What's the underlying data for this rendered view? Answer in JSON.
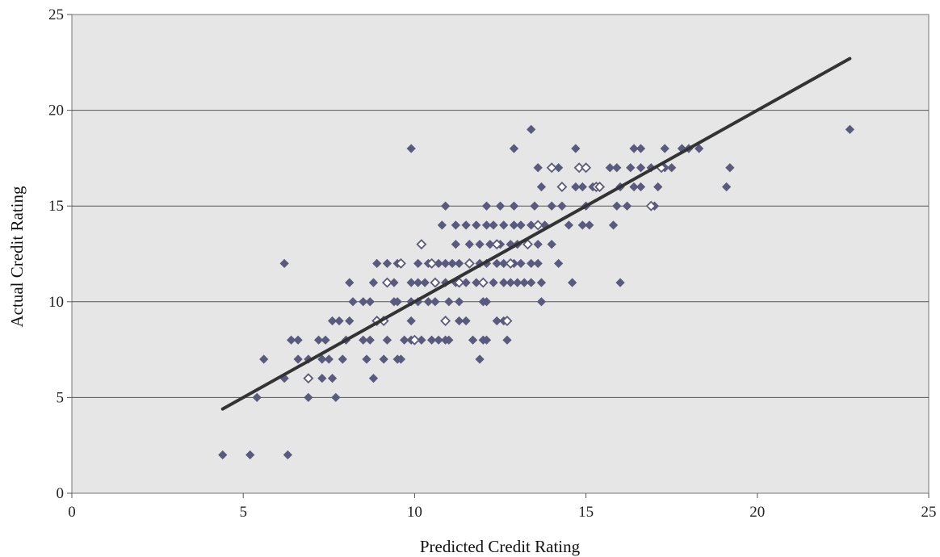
{
  "chart_data": {
    "type": "scatter",
    "title": "",
    "xlabel": "Predicted Credit Rating",
    "ylabel": "Actual Credit Rating",
    "xlim": [
      0,
      25
    ],
    "ylim": [
      0,
      25
    ],
    "x_ticks": [
      "0",
      "5",
      "10",
      "15",
      "20",
      "25"
    ],
    "y_ticks": [
      "0",
      "5",
      "10",
      "15",
      "20",
      "25"
    ],
    "grid": "horizontal",
    "plot_background": "#e6e6e6",
    "marker_color": "#5a5a7e",
    "line_color": "#333333",
    "trendline": {
      "x": [
        4.4,
        22.7
      ],
      "y": [
        4.4,
        22.7
      ]
    },
    "series": [
      {
        "marker": "filled-diamond",
        "points": [
          [
            4.4,
            2
          ],
          [
            5.2,
            2
          ],
          [
            6.3,
            2
          ],
          [
            5.4,
            5
          ],
          [
            6.2,
            6
          ],
          [
            6.9,
            5
          ],
          [
            7.7,
            5
          ],
          [
            7.3,
            6
          ],
          [
            7.6,
            6
          ],
          [
            8.8,
            6
          ],
          [
            5.6,
            7
          ],
          [
            6.6,
            7
          ],
          [
            6.9,
            7
          ],
          [
            7.3,
            7
          ],
          [
            7.5,
            7
          ],
          [
            7.9,
            7
          ],
          [
            8.6,
            7
          ],
          [
            9.1,
            7
          ],
          [
            9.5,
            7
          ],
          [
            9.6,
            7
          ],
          [
            11.9,
            7
          ],
          [
            6.4,
            8
          ],
          [
            6.6,
            8
          ],
          [
            7.2,
            8
          ],
          [
            7.4,
            8
          ],
          [
            8.0,
            8
          ],
          [
            8.5,
            8
          ],
          [
            8.7,
            8
          ],
          [
            9.2,
            8
          ],
          [
            9.7,
            8
          ],
          [
            9.9,
            8
          ],
          [
            10.2,
            8
          ],
          [
            10.5,
            8
          ],
          [
            10.7,
            8
          ],
          [
            10.9,
            8
          ],
          [
            11.0,
            8
          ],
          [
            11.7,
            8
          ],
          [
            12.0,
            8
          ],
          [
            12.1,
            8
          ],
          [
            12.7,
            8
          ],
          [
            7.8,
            9
          ],
          [
            8.1,
            9
          ],
          [
            8.9,
            9
          ],
          [
            9.1,
            9
          ],
          [
            9.9,
            9
          ],
          [
            11.3,
            9
          ],
          [
            11.5,
            9
          ],
          [
            12.4,
            9
          ],
          [
            12.6,
            9
          ],
          [
            7.6,
            9
          ],
          [
            8.2,
            10
          ],
          [
            8.5,
            10
          ],
          [
            8.7,
            10
          ],
          [
            9.4,
            10
          ],
          [
            9.5,
            10
          ],
          [
            9.9,
            10
          ],
          [
            10.1,
            10
          ],
          [
            10.4,
            10
          ],
          [
            10.6,
            10
          ],
          [
            11.0,
            10
          ],
          [
            11.3,
            10
          ],
          [
            12.0,
            10
          ],
          [
            12.1,
            10
          ],
          [
            13.7,
            10
          ],
          [
            8.1,
            11
          ],
          [
            8.8,
            11
          ],
          [
            9.4,
            11
          ],
          [
            9.9,
            11
          ],
          [
            10.1,
            11
          ],
          [
            10.3,
            11
          ],
          [
            10.6,
            11
          ],
          [
            10.9,
            11
          ],
          [
            11.2,
            11
          ],
          [
            11.5,
            11
          ],
          [
            11.8,
            11
          ],
          [
            12.0,
            11
          ],
          [
            12.3,
            11
          ],
          [
            12.6,
            11
          ],
          [
            12.8,
            11
          ],
          [
            13.0,
            11
          ],
          [
            13.2,
            11
          ],
          [
            13.4,
            11
          ],
          [
            13.7,
            11
          ],
          [
            14.6,
            11
          ],
          [
            16.0,
            11
          ],
          [
            6.2,
            12
          ],
          [
            8.9,
            12
          ],
          [
            9.2,
            12
          ],
          [
            9.5,
            12
          ],
          [
            10.1,
            12
          ],
          [
            10.4,
            12
          ],
          [
            10.7,
            12
          ],
          [
            10.9,
            12
          ],
          [
            11.1,
            12
          ],
          [
            11.3,
            12
          ],
          [
            11.6,
            12
          ],
          [
            11.9,
            12
          ],
          [
            12.1,
            12
          ],
          [
            12.4,
            12
          ],
          [
            12.6,
            12
          ],
          [
            12.9,
            12
          ],
          [
            13.1,
            12
          ],
          [
            13.4,
            12
          ],
          [
            13.6,
            12
          ],
          [
            14.2,
            12
          ],
          [
            11.2,
            13
          ],
          [
            11.6,
            13
          ],
          [
            11.9,
            13
          ],
          [
            12.2,
            13
          ],
          [
            12.5,
            13
          ],
          [
            12.8,
            13
          ],
          [
            13.0,
            13
          ],
          [
            13.3,
            13
          ],
          [
            13.6,
            13
          ],
          [
            14.0,
            13
          ],
          [
            10.8,
            14
          ],
          [
            11.2,
            14
          ],
          [
            11.5,
            14
          ],
          [
            11.8,
            14
          ],
          [
            12.1,
            14
          ],
          [
            12.3,
            14
          ],
          [
            12.6,
            14
          ],
          [
            12.9,
            14
          ],
          [
            13.1,
            14
          ],
          [
            13.4,
            14
          ],
          [
            13.8,
            14
          ],
          [
            14.5,
            14
          ],
          [
            14.9,
            14
          ],
          [
            15.1,
            14
          ],
          [
            15.8,
            14
          ],
          [
            10.9,
            15
          ],
          [
            12.1,
            15
          ],
          [
            12.5,
            15
          ],
          [
            12.9,
            15
          ],
          [
            13.5,
            15
          ],
          [
            14.0,
            15
          ],
          [
            14.3,
            15
          ],
          [
            15.0,
            15
          ],
          [
            15.9,
            15
          ],
          [
            16.2,
            15
          ],
          [
            17.0,
            15
          ],
          [
            13.7,
            16
          ],
          [
            14.7,
            16
          ],
          [
            14.9,
            16
          ],
          [
            15.2,
            16
          ],
          [
            16.0,
            16
          ],
          [
            16.4,
            16
          ],
          [
            16.6,
            16
          ],
          [
            17.1,
            16
          ],
          [
            19.1,
            16
          ],
          [
            13.6,
            17
          ],
          [
            14.2,
            17
          ],
          [
            14.8,
            17
          ],
          [
            15.7,
            17
          ],
          [
            15.9,
            17
          ],
          [
            16.3,
            17
          ],
          [
            16.6,
            17
          ],
          [
            16.9,
            17
          ],
          [
            17.3,
            17
          ],
          [
            17.5,
            17
          ],
          [
            19.2,
            17
          ],
          [
            9.9,
            18
          ],
          [
            12.9,
            18
          ],
          [
            14.7,
            18
          ],
          [
            16.4,
            18
          ],
          [
            16.6,
            18
          ],
          [
            17.3,
            18
          ],
          [
            17.8,
            18
          ],
          [
            18.0,
            18
          ],
          [
            18.3,
            18
          ],
          [
            13.4,
            19
          ],
          [
            22.7,
            19
          ]
        ]
      },
      {
        "marker": "open-diamond",
        "points": [
          [
            6.9,
            6
          ],
          [
            8.9,
            9
          ],
          [
            9.1,
            9
          ],
          [
            9.2,
            11
          ],
          [
            9.6,
            12
          ],
          [
            10.0,
            8
          ],
          [
            10.2,
            13
          ],
          [
            10.5,
            12
          ],
          [
            10.6,
            11
          ],
          [
            10.9,
            9
          ],
          [
            11.3,
            11
          ],
          [
            11.6,
            12
          ],
          [
            12.0,
            11
          ],
          [
            12.4,
            13
          ],
          [
            12.7,
            9
          ],
          [
            12.8,
            12
          ],
          [
            13.3,
            13
          ],
          [
            13.6,
            14
          ],
          [
            14.0,
            17
          ],
          [
            14.3,
            16
          ],
          [
            14.8,
            17
          ],
          [
            15.0,
            17
          ],
          [
            15.3,
            16
          ],
          [
            15.4,
            16
          ],
          [
            16.9,
            15
          ],
          [
            17.2,
            17
          ]
        ]
      }
    ]
  }
}
